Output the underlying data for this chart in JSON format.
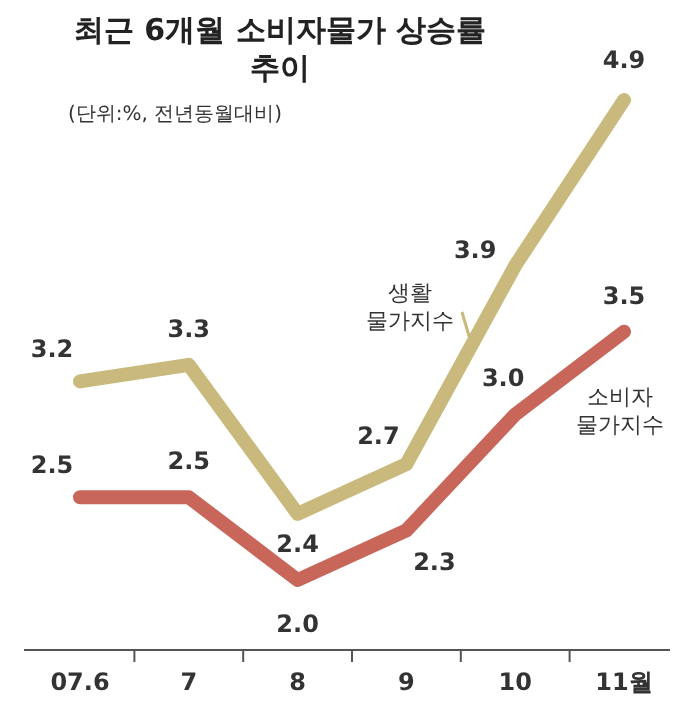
{
  "chart_data": {
    "type": "line",
    "title": "최근 6개월 소비자물가 상승률 추이",
    "subtitle": "(단위:%, 전년동월대비)",
    "categories": [
      "07.6",
      "7",
      "8",
      "9",
      "10",
      "11월"
    ],
    "series": [
      {
        "name": "생활 물가지수",
        "color": "#c9b97c",
        "values": [
          3.2,
          3.3,
          2.4,
          2.7,
          3.9,
          4.9
        ],
        "value_labels": [
          "3.2",
          "3.3",
          "2.4",
          "2.7",
          "3.9",
          "4.9"
        ]
      },
      {
        "name": "소비자 물가지수",
        "color": "#c8665a",
        "values": [
          2.5,
          2.5,
          2.0,
          2.3,
          3.0,
          3.5
        ],
        "value_labels": [
          "2.5",
          "2.5",
          "2.0",
          "2.3",
          "3.0",
          "3.5"
        ]
      }
    ],
    "legend": false,
    "marker": "none",
    "line_style": "solid"
  }
}
